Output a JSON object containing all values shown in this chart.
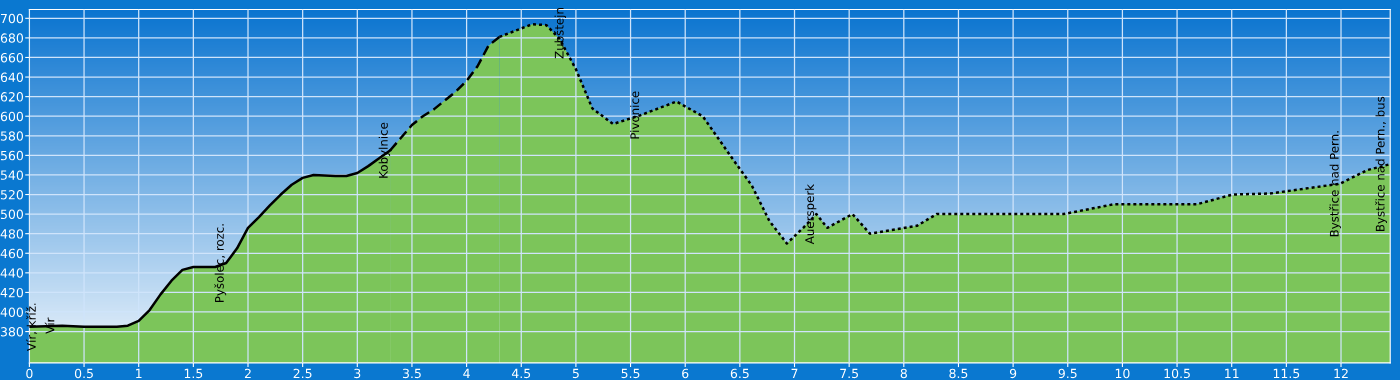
{
  "chart_data": {
    "type": "area",
    "series": [
      {
        "color": "#7cc55a",
        "line_style": "solid",
        "x": [
          0,
          0.3,
          0.5,
          0.8,
          0.9,
          1.0,
          1.1,
          1.2,
          1.3,
          1.4,
          1.5,
          1.7,
          1.8,
          1.9,
          2.0,
          2.1,
          2.2,
          2.3,
          2.4,
          2.5,
          2.6,
          2.8,
          2.9,
          3.0,
          3.1,
          3.2,
          3.3
        ],
        "values": [
          385,
          386,
          385,
          385,
          386,
          391,
          402,
          418,
          432,
          443,
          446,
          446,
          450,
          465,
          486,
          497,
          509,
          520,
          530,
          537,
          540,
          539,
          539,
          542,
          549,
          557,
          565
        ]
      },
      {
        "color": "#7cc55a",
        "line_style": "dashed",
        "x": [
          3.3,
          3.4,
          3.5,
          3.6,
          3.7,
          3.8,
          3.9,
          4.0,
          4.1,
          4.2,
          4.3
        ],
        "values": [
          565,
          578,
          591,
          600,
          607,
          616,
          625,
          636,
          651,
          672,
          681
        ]
      },
      {
        "color": "#7cc55a",
        "line_style": "dotted",
        "x": [
          4.3,
          4.6,
          4.73,
          4.85,
          5.0,
          5.15,
          5.34,
          5.59,
          5.92,
          6.16,
          6.43,
          6.61,
          6.77,
          6.93,
          7.08,
          7.2,
          7.3,
          7.53,
          7.69,
          8.12,
          8.3,
          9.46,
          9.92,
          10.68,
          11.01,
          11.35,
          11.99,
          12.24,
          12.45
        ],
        "values": [
          681,
          694,
          693,
          679,
          648,
          608,
          592,
          601,
          615,
          600,
          557,
          529,
          493,
          470,
          486,
          500,
          486,
          500,
          480,
          488,
          500,
          500,
          510,
          510,
          520,
          521,
          531,
          545,
          551
        ]
      }
    ],
    "xlim": [
      0,
      12.45
    ],
    "ylim": [
      348,
      709
    ],
    "xticks": [
      0,
      0.5,
      1,
      1.5,
      2,
      2.5,
      3,
      3.5,
      4,
      4.5,
      5,
      5.5,
      6,
      6.5,
      7,
      7.5,
      8,
      8.5,
      9,
      9.5,
      10,
      10.5,
      11,
      11.5,
      12
    ],
    "yticks": [
      380,
      400,
      420,
      440,
      460,
      480,
      500,
      520,
      540,
      560,
      580,
      600,
      620,
      640,
      660,
      680,
      700
    ],
    "grid": true,
    "annotations": [
      {
        "text": "Vír, kříž.",
        "x": 0.08,
        "y": 385
      },
      {
        "text": "Vír",
        "x": 0.25,
        "y": 386
      },
      {
        "text": "Pyšolec, rozc.",
        "x": 1.8,
        "y": 450
      },
      {
        "text": "Kobylnice",
        "x": 3.3,
        "y": 565
      },
      {
        "text": "Zubštejn",
        "x": 4.8,
        "y": 685
      },
      {
        "text": "Pivonice",
        "x": 5.6,
        "y": 601
      },
      {
        "text": "Auersperk",
        "x": 7.2,
        "y": 500
      },
      {
        "text": "Bystřice nad Pern.",
        "x": 12.0,
        "y": 531
      },
      {
        "text": "Bystřice nad Pern., bus",
        "x": 12.42,
        "y": 551
      }
    ]
  }
}
